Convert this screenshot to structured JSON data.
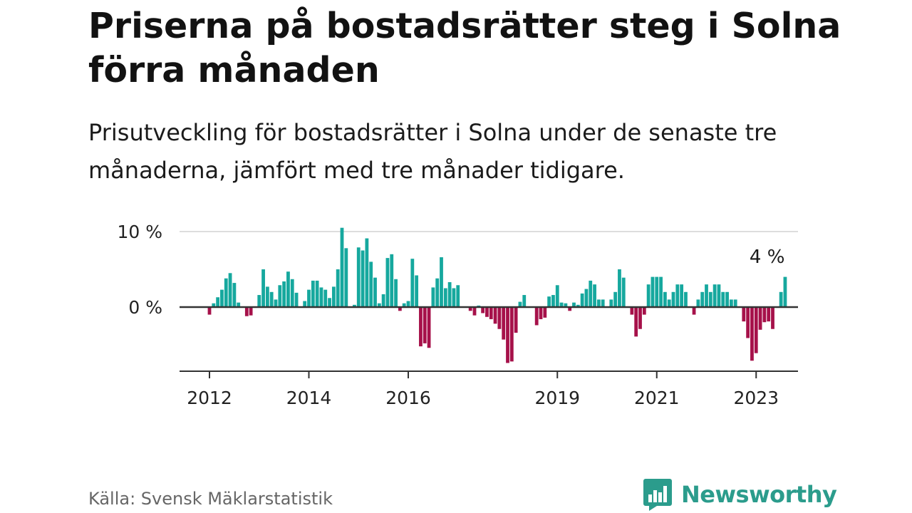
{
  "title": "Priserna på bostadsrätter steg i Solna förra månaden",
  "subtitle": "Prisutveckling för bostadsrätter i Solna under de senaste tre månaderna, jämfört med tre månader tidigare.",
  "source": "Källa: Svensk Mäklarstatistik",
  "brand": {
    "name": "Newsworthy",
    "icon": "newsworthy-logo-icon"
  },
  "colors": {
    "positive": "#16a89e",
    "negative": "#a6114a",
    "grid": "#dddddd",
    "axis": "#333333",
    "brand": "#2b9c8c"
  },
  "chart_data": {
    "type": "bar",
    "title": "Priserna på bostadsrätter steg i Solna förra månaden",
    "xlabel": "",
    "ylabel": "",
    "unit": "%",
    "ylim": [
      -8.5,
      10.5
    ],
    "y_ticks": [
      {
        "value": 0,
        "label": "0 %"
      },
      {
        "value": 10,
        "label": "10 %"
      }
    ],
    "x_start": {
      "year": 2011,
      "month": 1
    },
    "x_ticks": [
      {
        "label": "2012",
        "index": 12
      },
      {
        "label": "2014",
        "index": 36
      },
      {
        "label": "2016",
        "index": 60
      },
      {
        "label": "2019",
        "index": 96
      },
      {
        "label": "2021",
        "index": 120
      },
      {
        "label": "2023",
        "index": 144
      }
    ],
    "annotation": {
      "text": "4 %",
      "index": 147
    },
    "values": [
      0,
      0,
      0,
      0,
      0,
      0,
      0,
      0,
      0,
      0,
      0,
      0,
      -1,
      0.5,
      1.3,
      2.3,
      3.8,
      4.5,
      3.2,
      0.6,
      0,
      -1.2,
      -1.1,
      0,
      1.6,
      5,
      2.7,
      2,
      1,
      2.9,
      3.4,
      4.7,
      3.7,
      1.9,
      0,
      0.8,
      2.3,
      3.5,
      3.5,
      2.6,
      2.3,
      1.2,
      2.7,
      5,
      10.5,
      7.8,
      0,
      0.3,
      7.9,
      7.5,
      9.1,
      6,
      3.9,
      0.5,
      1.7,
      6.5,
      7,
      3.7,
      -0.5,
      0.5,
      0.8,
      6.4,
      4.2,
      -5.2,
      -4.8,
      -5.4,
      2.6,
      3.8,
      6.6,
      2.5,
      3.3,
      2.5,
      2.9,
      0,
      0,
      -0.5,
      -1.1,
      0.2,
      -0.8,
      -1.3,
      -1.6,
      -2.2,
      -2.9,
      -4.3,
      -7.4,
      -7.2,
      -3.4,
      0.7,
      1.6,
      0,
      0,
      -2.4,
      -1.6,
      -1.4,
      1.4,
      1.6,
      2.9,
      0.6,
      0.5,
      -0.5,
      0.6,
      0.3,
      1.8,
      2.4,
      3.5,
      3,
      1,
      1,
      0,
      1,
      2,
      5,
      3.9,
      0,
      -1,
      -3.9,
      -2.9,
      -1,
      3,
      4,
      4,
      4,
      2,
      1,
      2,
      3,
      3,
      2,
      0,
      -1,
      1,
      2,
      3,
      2,
      3,
      3,
      2,
      2,
      1,
      1,
      0,
      -1.9,
      -4.1,
      -7.1,
      -6.1,
      -3,
      -2,
      -1.9,
      -2.9,
      0,
      2,
      4
    ]
  }
}
